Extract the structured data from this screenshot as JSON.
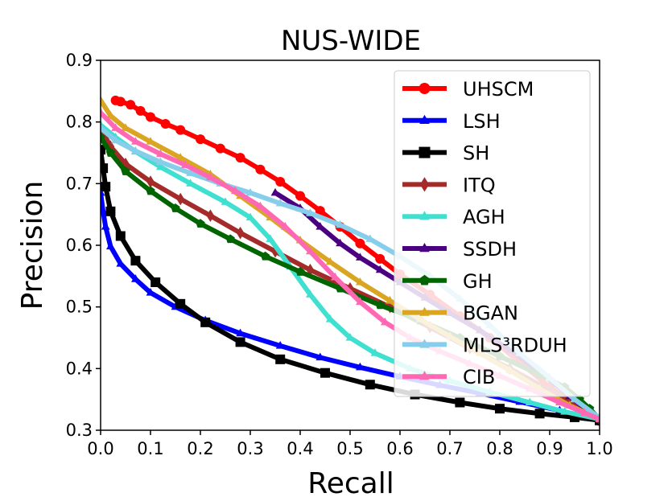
{
  "chart_data": {
    "type": "line",
    "title": "NUS-WIDE",
    "xlabel": "Recall",
    "ylabel": "Precision",
    "xlim": [
      0.0,
      1.0
    ],
    "ylim": [
      0.3,
      0.9
    ],
    "xticks": [
      "0.0",
      "0.1",
      "0.2",
      "0.3",
      "0.4",
      "0.5",
      "0.6",
      "0.7",
      "0.8",
      "0.9",
      "1.0"
    ],
    "yticks": [
      "0.3",
      "0.4",
      "0.5",
      "0.6",
      "0.7",
      "0.8",
      "0.9"
    ],
    "legend_position": "top-right",
    "series": [
      {
        "name": "UHSCM",
        "color": "#ff0000",
        "marker": "circle",
        "x": [
          0.03,
          0.04,
          0.06,
          0.08,
          0.1,
          0.13,
          0.16,
          0.2,
          0.24,
          0.28,
          0.32,
          0.36,
          0.4,
          0.44,
          0.48,
          0.52,
          0.56,
          0.6,
          0.66,
          0.72,
          0.78,
          0.84,
          0.9,
          0.95,
          1.0
        ],
        "y": [
          0.835,
          0.833,
          0.828,
          0.818,
          0.808,
          0.797,
          0.787,
          0.772,
          0.757,
          0.742,
          0.723,
          0.703,
          0.68,
          0.656,
          0.63,
          0.603,
          0.578,
          0.553,
          0.52,
          0.485,
          0.45,
          0.41,
          0.37,
          0.34,
          0.315
        ]
      },
      {
        "name": "LSH",
        "color": "#0000ff",
        "marker": "tri",
        "x": [
          0.0,
          0.005,
          0.01,
          0.02,
          0.04,
          0.07,
          0.1,
          0.15,
          0.21,
          0.28,
          0.36,
          0.44,
          0.52,
          0.6,
          0.68,
          0.76,
          0.84,
          0.92,
          1.0
        ],
        "y": [
          0.685,
          0.655,
          0.63,
          0.598,
          0.57,
          0.545,
          0.523,
          0.5,
          0.478,
          0.457,
          0.437,
          0.418,
          0.402,
          0.387,
          0.373,
          0.36,
          0.346,
          0.332,
          0.316
        ]
      },
      {
        "name": "SH",
        "color": "#000000",
        "marker": "square",
        "x": [
          0.0,
          0.005,
          0.01,
          0.02,
          0.04,
          0.07,
          0.11,
          0.16,
          0.21,
          0.28,
          0.36,
          0.45,
          0.54,
          0.63,
          0.72,
          0.8,
          0.88,
          0.95,
          1.0
        ],
        "y": [
          0.755,
          0.725,
          0.695,
          0.655,
          0.615,
          0.575,
          0.54,
          0.505,
          0.475,
          0.443,
          0.415,
          0.393,
          0.374,
          0.358,
          0.345,
          0.335,
          0.327,
          0.321,
          0.316
        ]
      },
      {
        "name": "ITQ",
        "color": "#a52a2a",
        "marker": "diamond",
        "x": [
          0.0,
          0.02,
          0.05,
          0.1,
          0.16,
          0.22,
          0.28,
          0.35,
          0.42,
          0.5,
          0.58,
          0.66,
          0.74,
          0.82,
          0.9,
          0.96,
          1.0
        ],
        "y": [
          0.79,
          0.76,
          0.732,
          0.703,
          0.675,
          0.648,
          0.62,
          0.59,
          0.56,
          0.53,
          0.5,
          0.467,
          0.433,
          0.4,
          0.365,
          0.34,
          0.318
        ]
      },
      {
        "name": "AGH",
        "color": "#40e0d0",
        "marker": "tri",
        "x": [
          0.0,
          0.03,
          0.07,
          0.12,
          0.18,
          0.25,
          0.3,
          0.34,
          0.38,
          0.42,
          0.46,
          0.5,
          0.55,
          0.62,
          0.7,
          0.78,
          0.86,
          0.93,
          1.0
        ],
        "y": [
          0.795,
          0.775,
          0.752,
          0.727,
          0.7,
          0.67,
          0.645,
          0.61,
          0.565,
          0.52,
          0.48,
          0.45,
          0.425,
          0.4,
          0.38,
          0.362,
          0.345,
          0.33,
          0.318
        ]
      },
      {
        "name": "SSDH",
        "color": "#4b0082",
        "marker": "tri",
        "x": [
          0.35,
          0.4,
          0.44,
          0.48,
          0.52,
          0.56,
          0.6,
          0.65,
          0.7,
          0.76,
          0.82,
          0.88,
          0.94,
          1.0
        ],
        "y": [
          0.685,
          0.66,
          0.63,
          0.603,
          0.58,
          0.56,
          0.54,
          0.515,
          0.49,
          0.462,
          0.43,
          0.395,
          0.355,
          0.318
        ]
      },
      {
        "name": "GH",
        "color": "#006400",
        "marker": "pentagon",
        "x": [
          0.0,
          0.02,
          0.05,
          0.1,
          0.15,
          0.2,
          0.26,
          0.33,
          0.4,
          0.48,
          0.56,
          0.64,
          0.72,
          0.8,
          0.88,
          0.93,
          0.96,
          0.98,
          1.0
        ],
        "y": [
          0.775,
          0.75,
          0.72,
          0.688,
          0.66,
          0.635,
          0.61,
          0.582,
          0.557,
          0.53,
          0.503,
          0.478,
          0.45,
          0.42,
          0.39,
          0.37,
          0.35,
          0.335,
          0.318
        ]
      },
      {
        "name": "BGAN",
        "color": "#daa520",
        "marker": "tri",
        "x": [
          0.0,
          0.02,
          0.05,
          0.1,
          0.16,
          0.22,
          0.28,
          0.34,
          0.4,
          0.46,
          0.52,
          0.58,
          0.64,
          0.7,
          0.76,
          0.82,
          0.88,
          0.94,
          1.0
        ],
        "y": [
          0.835,
          0.81,
          0.79,
          0.768,
          0.742,
          0.715,
          0.68,
          0.645,
          0.608,
          0.573,
          0.54,
          0.51,
          0.48,
          0.452,
          0.425,
          0.397,
          0.367,
          0.34,
          0.318
        ]
      },
      {
        "name": "MLS³RDUH",
        "color": "#87ceeb",
        "marker": "tri",
        "x": [
          0.0,
          0.03,
          0.07,
          0.12,
          0.18,
          0.24,
          0.3,
          0.36,
          0.42,
          0.48,
          0.54,
          0.6,
          0.66,
          0.72,
          0.78,
          0.84,
          0.9,
          0.95,
          1.0
        ],
        "y": [
          0.79,
          0.77,
          0.753,
          0.735,
          0.717,
          0.7,
          0.685,
          0.668,
          0.652,
          0.633,
          0.61,
          0.582,
          0.55,
          0.513,
          0.47,
          0.425,
          0.385,
          0.35,
          0.32
        ]
      },
      {
        "name": "CIB",
        "color": "#ff69b4",
        "marker": "tri",
        "x": [
          0.0,
          0.03,
          0.07,
          0.12,
          0.17,
          0.22,
          0.27,
          0.32,
          0.37,
          0.42,
          0.47,
          0.52,
          0.57,
          0.62,
          0.68,
          0.74,
          0.8,
          0.86,
          0.92,
          0.97,
          1.0
        ],
        "y": [
          0.815,
          0.79,
          0.768,
          0.748,
          0.73,
          0.71,
          0.688,
          0.663,
          0.63,
          0.59,
          0.548,
          0.508,
          0.475,
          0.45,
          0.428,
          0.408,
          0.388,
          0.367,
          0.345,
          0.328,
          0.318
        ]
      }
    ]
  }
}
